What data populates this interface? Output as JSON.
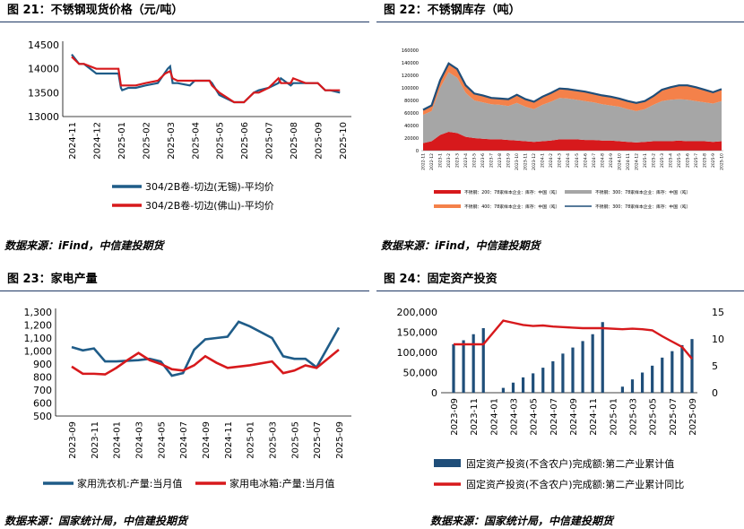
{
  "panels": {
    "p21": {
      "title": "图 21：不锈钢现货价格（元/吨）",
      "source": "数据来源：iFind，中信建投期货"
    },
    "p22": {
      "title": "图 22：不锈钢库存（吨）",
      "source": "数据来源：iFind，中信建投期货"
    },
    "p23": {
      "title": "图 23：家电产量",
      "source": "数据来源：国家统计局，中信建投期货"
    },
    "p24": {
      "title": "图 24：固定资产投资",
      "source": "数据来源：国家统计局，中信建投期货"
    }
  },
  "colors": {
    "navy": "#1f5c88",
    "red": "#d7191c",
    "gray": "#a6a6a6",
    "orange": "#f4814a",
    "darkblue": "#1f4e79",
    "bar": "#1f4e79"
  },
  "chart_data": [
    {
      "id": "c21",
      "type": "line",
      "ylim": [
        13000,
        14500
      ],
      "yticks": [
        13000,
        13500,
        14000,
        14500
      ],
      "ytick_labels": [
        "13000",
        "13500",
        "14000",
        "14500"
      ],
      "xtick_labels": [
        "2024-11",
        "2024-12",
        "2025-01",
        "2025-02",
        "2025-03",
        "2025-04",
        "2025-05",
        "2025-06",
        "2025-07",
        "2025-08",
        "2025-09",
        "2025-10"
      ],
      "series": [
        {
          "name": "304/2B卷-切边(无锡)-平均价",
          "color": "#1f5c88",
          "x": [
            0,
            0.3,
            0.5,
            1.0,
            1.5,
            1.9,
            2.0,
            2.05,
            2.3,
            2.6,
            3.0,
            3.5,
            3.9,
            4.0,
            4.1,
            4.3,
            4.8,
            5.0,
            5.6,
            5.7,
            6.0,
            6.6,
            7.0,
            7.4,
            7.6,
            8.0,
            8.4,
            8.5,
            8.9,
            9.0,
            9.5,
            10.0,
            10.3,
            10.5,
            10.9
          ],
          "y": [
            14300,
            14100,
            14100,
            13900,
            13900,
            13900,
            13600,
            13550,
            13600,
            13600,
            13650,
            13700,
            14000,
            14050,
            13700,
            13700,
            13650,
            13750,
            13750,
            13700,
            13450,
            13300,
            13300,
            13500,
            13550,
            13600,
            13700,
            13800,
            13650,
            13700,
            13700,
            13700,
            13550,
            13550,
            13500
          ]
        },
        {
          "name": "304/2B卷-切边(佛山)-平均价",
          "color": "#d7191c",
          "x": [
            0,
            0.3,
            0.5,
            1.0,
            1.5,
            1.9,
            2.0,
            2.3,
            2.6,
            3.0,
            3.5,
            3.8,
            4.0,
            4.1,
            4.3,
            4.8,
            5.0,
            5.6,
            5.7,
            6.0,
            6.6,
            7.0,
            7.4,
            7.6,
            8.0,
            8.4,
            8.5,
            8.9,
            9.0,
            9.5,
            10.0,
            10.3,
            10.5,
            10.9
          ],
          "y": [
            14250,
            14100,
            14100,
            14000,
            14000,
            14000,
            13650,
            13650,
            13650,
            13700,
            13750,
            13900,
            13950,
            13800,
            13750,
            13750,
            13750,
            13750,
            13650,
            13500,
            13300,
            13300,
            13500,
            13500,
            13600,
            13800,
            13700,
            13700,
            13800,
            13700,
            13700,
            13550,
            13550,
            13550
          ]
        }
      ]
    },
    {
      "id": "c22",
      "type": "area",
      "ylim": [
        0,
        160000
      ],
      "yticks": [
        0,
        20000,
        40000,
        60000,
        80000,
        100000,
        120000,
        140000,
        160000
      ],
      "ytick_labels": [
        "0",
        "20000",
        "40000",
        "60000",
        "80000",
        "100000",
        "120000",
        "140000",
        "160000"
      ],
      "xtick_labels": [
        "2022-11",
        "2022-12",
        "2023-1",
        "2023-2",
        "2023-3",
        "2023-4",
        "2023-5",
        "2023-6",
        "2023-7",
        "2023-8",
        "2023-9",
        "2023-10",
        "2023-11",
        "2023-12",
        "2024-1",
        "2024-2",
        "2024-3",
        "2024-4",
        "2024-5",
        "2024-6",
        "2024-7",
        "2024-8",
        "2024-9",
        "2024-10",
        "2024-11",
        "2024-12",
        "2025-1",
        "2025-2",
        "2025-3",
        "2025-4",
        "2025-5",
        "2025-6",
        "2025-7",
        "2025-8",
        "2025-9",
        "2025-10"
      ],
      "x_index": [
        0,
        1,
        2,
        3,
        4,
        5,
        6,
        7,
        8,
        9,
        10,
        11,
        12,
        13,
        14,
        15,
        16,
        17,
        18,
        19,
        20,
        21,
        22,
        23,
        24,
        25,
        26,
        27,
        28,
        29,
        30,
        31,
        32,
        33,
        34,
        35
      ],
      "series": [
        {
          "name": "不锈钢：200：78家样本企业：库存：中国（吨）",
          "color": "#d7191c",
          "values": [
            12000,
            15000,
            25000,
            30000,
            28000,
            22000,
            20000,
            19000,
            18000,
            18000,
            17000,
            16000,
            15000,
            14000,
            15000,
            16000,
            18000,
            18000,
            18000,
            17000,
            17000,
            16000,
            16000,
            15000,
            14000,
            13000,
            14000,
            15000,
            15000,
            15000,
            16000,
            15000,
            15000,
            15000,
            14000,
            15000
          ]
        },
        {
          "name": "不锈钢：300：78家样本企业：库存：中国（吨）",
          "color": "#a6a6a6",
          "values": [
            45000,
            48000,
            75000,
            95000,
            88000,
            70000,
            60000,
            58000,
            56000,
            55000,
            54000,
            60000,
            55000,
            52000,
            58000,
            62000,
            66000,
            65000,
            63000,
            62000,
            60000,
            58000,
            56000,
            55000,
            52000,
            50000,
            52000,
            58000,
            64000,
            66000,
            66000,
            66000,
            64000,
            62000,
            61000,
            64000
          ]
        },
        {
          "name": "不锈钢：400：78家样本企业：库存：中国（吨）",
          "color": "#f4814a",
          "values": [
            8000,
            9000,
            12000,
            14000,
            14000,
            12000,
            11000,
            11000,
            10000,
            10000,
            11000,
            13000,
            12000,
            12000,
            13000,
            14000,
            15000,
            15000,
            15000,
            15000,
            14000,
            14000,
            14000,
            13000,
            13000,
            13000,
            13000,
            14000,
            18000,
            20000,
            22000,
            23000,
            22000,
            20000,
            18000,
            19000
          ]
        },
        {
          "name": "不锈钢：300：78家样本企业：库存：中国（吨）",
          "color": "#1f4e79",
          "kind": "total",
          "values": [
            65000,
            72000,
            112000,
            139000,
            130000,
            104000,
            91000,
            88000,
            84000,
            83000,
            82000,
            89000,
            82000,
            78000,
            86000,
            92000,
            99000,
            98000,
            96000,
            94000,
            91000,
            88000,
            86000,
            83000,
            79000,
            76000,
            79000,
            87000,
            97000,
            101000,
            104000,
            104000,
            101000,
            97000,
            93000,
            98000
          ]
        }
      ]
    },
    {
      "id": "c23",
      "type": "line",
      "ylim": [
        500,
        1300
      ],
      "yticks": [
        500,
        600,
        700,
        800,
        900,
        1000,
        1100,
        1200,
        1300
      ],
      "ytick_labels": [
        "500",
        "600",
        "700",
        "800",
        "900",
        "1,000",
        "1,100",
        "1,200",
        "1,300"
      ],
      "xtick_labels": [
        "2023-09",
        "2023-11",
        "2024-01",
        "2024-03",
        "2024-05",
        "2024-07",
        "2024-09",
        "2024-11",
        "2025-01",
        "2025-03",
        "2025-05",
        "2025-07",
        "2025-09"
      ],
      "series": [
        {
          "name": "家用洗衣机:产量:当月值",
          "color": "#1f5c88",
          "x": [
            0,
            0.5,
            1,
            1.5,
            2,
            3,
            3.5,
            4,
            4.5,
            5,
            5.5,
            6,
            6.5,
            7,
            7.5,
            8,
            9,
            9.5,
            10,
            10.5,
            11,
            12
          ],
          "y": [
            1030,
            1005,
            1020,
            920,
            920,
            930,
            940,
            920,
            810,
            830,
            1010,
            1090,
            1100,
            1110,
            1225,
            1190,
            1100,
            960,
            940,
            940,
            875,
            1180
          ]
        },
        {
          "name": "家用电冰箱:产量:当月值",
          "color": "#d7191c",
          "x": [
            0,
            0.5,
            1,
            1.5,
            2,
            2.5,
            3,
            3.5,
            4,
            4.5,
            5,
            5.5,
            6,
            6.5,
            7,
            8,
            9,
            9.5,
            10,
            10.5,
            11,
            12
          ],
          "y": [
            880,
            825,
            825,
            820,
            870,
            930,
            985,
            930,
            900,
            860,
            850,
            890,
            960,
            910,
            870,
            890,
            920,
            830,
            850,
            890,
            870,
            1010
          ]
        }
      ]
    },
    {
      "id": "c24",
      "type": "bar",
      "ylim": [
        0,
        200000
      ],
      "yticks": [
        0,
        50000,
        100000,
        150000,
        200000
      ],
      "ytick_labels": [
        "0",
        "50,000",
        "100,000",
        "150,000",
        "200,000"
      ],
      "y2lim": [
        0,
        15
      ],
      "y2ticks": [
        0,
        5,
        10,
        15
      ],
      "y2tick_labels": [
        "0",
        "5",
        "10",
        "15"
      ],
      "xtick_labels": [
        "2023-09",
        "2023-11",
        "2024-01",
        "2024-03",
        "2024-05",
        "2024-07",
        "2024-09",
        "2024-11",
        "2025-01",
        "2025-03",
        "2025-05",
        "2025-07",
        "2025-09"
      ],
      "bars": {
        "name": "固定资产投资(不含农户)完成额:第二产业累计值",
        "color": "#1f4e79",
        "x": [
          0,
          1,
          2,
          3,
          5,
          6,
          7,
          8,
          9,
          10,
          11,
          12,
          13,
          14,
          15,
          17,
          18,
          19,
          20,
          21,
          22,
          23,
          24
        ],
        "values": [
          120000,
          130000,
          145000,
          160000,
          12000,
          25000,
          38000,
          48000,
          62000,
          78000,
          97000,
          112000,
          128000,
          145000,
          175000,
          15000,
          33000,
          50000,
          67000,
          87000,
          103000,
          118000,
          133000
        ]
      },
      "line": {
        "name": "固定资产投资(不含农户)完成额:第二产业累计同比",
        "color": "#d7191c",
        "x": [
          0,
          1,
          2,
          3,
          5,
          6,
          7,
          8,
          9,
          10,
          11,
          12,
          13,
          14,
          15,
          17,
          18,
          19,
          20,
          21,
          22,
          23,
          24
        ],
        "y": [
          9,
          9,
          9,
          9,
          13.4,
          13,
          12.6,
          12.4,
          12.5,
          12.3,
          12.2,
          12.1,
          12.0,
          12.0,
          12.0,
          11.8,
          11.9,
          11.8,
          11.6,
          10.5,
          9.5,
          8.5,
          6.3
        ]
      }
    }
  ]
}
